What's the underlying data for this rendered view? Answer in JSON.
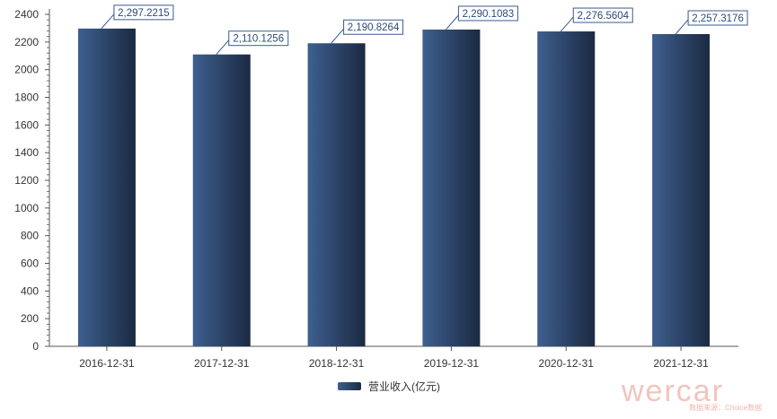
{
  "chart_data": {
    "type": "bar",
    "categories": [
      "2016-12-31",
      "2017-12-31",
      "2018-12-31",
      "2019-12-31",
      "2020-12-31",
      "2021-12-31"
    ],
    "series": [
      {
        "name": "营业收入(亿元)",
        "values": [
          2297.2215,
          2110.1256,
          2190.8264,
          2290.1083,
          2276.5604,
          2257.3176
        ]
      }
    ],
    "data_labels": [
      "2,297.2215",
      "2,110.1256",
      "2,190.8264",
      "2,290.1083",
      "2,276.5604",
      "2,257.3176"
    ],
    "yticks": [
      0,
      200,
      400,
      600,
      800,
      1000,
      1200,
      1400,
      1600,
      1800,
      2000,
      2200,
      2400
    ],
    "ylim": [
      0,
      2400
    ],
    "grid": false,
    "legend_position": "bottom-center",
    "colors": {
      "bar_light": "#3e5f8f",
      "bar_dark": "#1b2a42",
      "label_border": "#3a5c8f",
      "label_text": "#2b4a78",
      "axis": "#555555",
      "tick_text": "#333333"
    }
  },
  "watermark": {
    "brand": "wercar",
    "source": "数据来源：Choice数据"
  }
}
